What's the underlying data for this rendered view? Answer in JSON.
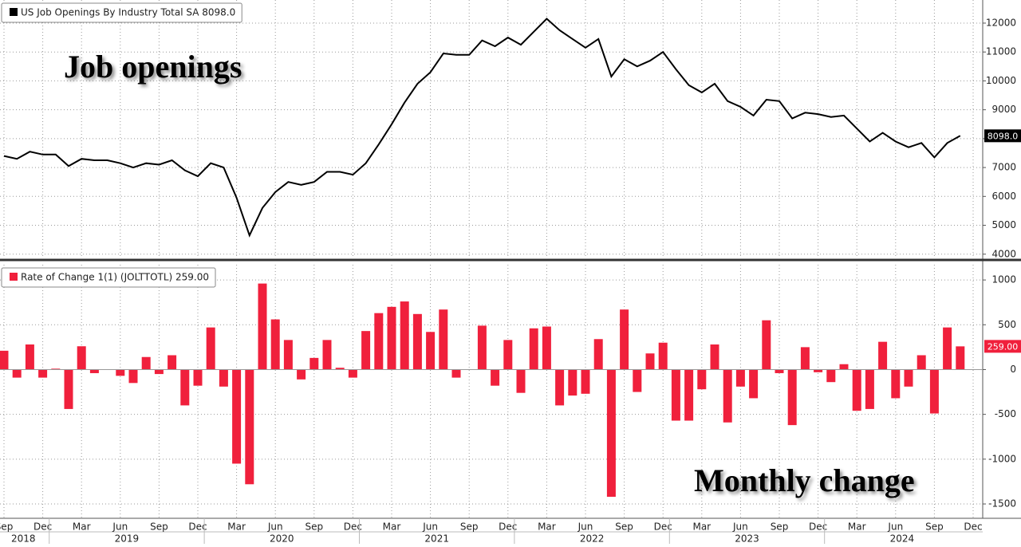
{
  "chart_data": [
    {
      "type": "line",
      "series": [
        {
          "name": "US Job Openings By Industry Total SA 8098.0",
          "color": "#000000",
          "values": [
            7400,
            7300,
            7550,
            7450,
            7450,
            7050,
            7300,
            7250,
            7250,
            7150,
            7000,
            7150,
            7100,
            7250,
            6900,
            6700,
            7150,
            7000,
            5950,
            4650,
            5600,
            6150,
            6500,
            6400,
            6500,
            6850,
            6850,
            6750,
            7150,
            7800,
            8500,
            9250,
            9900,
            10300,
            10950,
            10900,
            10900,
            11400,
            11200,
            11500,
            11250,
            11700,
            12150,
            11750,
            11450,
            11150,
            11450,
            10150,
            10750,
            10500,
            10700,
            11000,
            10400,
            9850,
            9600,
            9900,
            9300,
            9100,
            8800,
            9350,
            9300,
            8700,
            8900,
            8850,
            8750,
            8800,
            8350,
            7900,
            8200,
            7900,
            7700,
            7850,
            7350,
            7850,
            8098,
            null
          ]
        }
      ],
      "last_value_label": "8098.0",
      "annotation": "Job openings",
      "ylim": [
        3800,
        12800
      ],
      "yticks": [
        4000,
        5000,
        6000,
        7000,
        8000,
        9000,
        10000,
        11000,
        12000
      ],
      "grid": true
    },
    {
      "type": "bar",
      "series": [
        {
          "name": "Rate of Change 1(1) (JOLTTOTL) 259.00",
          "color": "#f0203c",
          "values": [
            210,
            -90,
            280,
            -90,
            10,
            -440,
            260,
            -40,
            0,
            -70,
            -150,
            140,
            -50,
            160,
            -400,
            -180,
            470,
            -190,
            -1050,
            -1280,
            960,
            560,
            330,
            -110,
            130,
            330,
            20,
            -90,
            430,
            630,
            700,
            760,
            620,
            420,
            670,
            -90,
            0,
            490,
            -180,
            330,
            -260,
            460,
            480,
            -400,
            -290,
            -270,
            340,
            -1420,
            670,
            -250,
            180,
            300,
            -570,
            -570,
            -220,
            280,
            -590,
            -190,
            -320,
            550,
            -40,
            -620,
            250,
            -30,
            -140,
            60,
            -460,
            -440,
            310,
            -320,
            -190,
            160,
            -490,
            470,
            259,
            null
          ]
        }
      ],
      "last_value_label": "259.00",
      "annotation": "Monthly change",
      "categories": [
        "Sep",
        null,
        null,
        "Dec",
        null,
        null,
        "Mar",
        null,
        null,
        "Jun",
        null,
        null,
        "Sep",
        null,
        null,
        "Dec",
        null,
        null,
        "Mar",
        null,
        null,
        "Jun",
        null,
        null,
        "Sep",
        null,
        null,
        "Dec",
        null,
        null,
        "Mar",
        null,
        null,
        "Jun",
        null,
        null,
        "Sep",
        null,
        null,
        "Dec",
        null,
        null,
        "Mar",
        null,
        null,
        "Jun",
        null,
        null,
        "Sep",
        null,
        null,
        "Dec",
        null,
        null,
        "Mar",
        null,
        null,
        "Jun",
        null,
        null,
        "Sep",
        null,
        null,
        "Dec",
        null,
        null,
        "Mar",
        null,
        null,
        "Jun",
        null,
        null,
        "Sep",
        null,
        null,
        "Dec"
      ],
      "x_groups": [
        "2018",
        "2019",
        "2020",
        "2021",
        "2022",
        "2023",
        "2024"
      ],
      "ylim": [
        -1660,
        1170
      ],
      "yticks": [
        -1500,
        -1000,
        -500,
        0,
        500,
        1000
      ],
      "grid": true
    }
  ]
}
